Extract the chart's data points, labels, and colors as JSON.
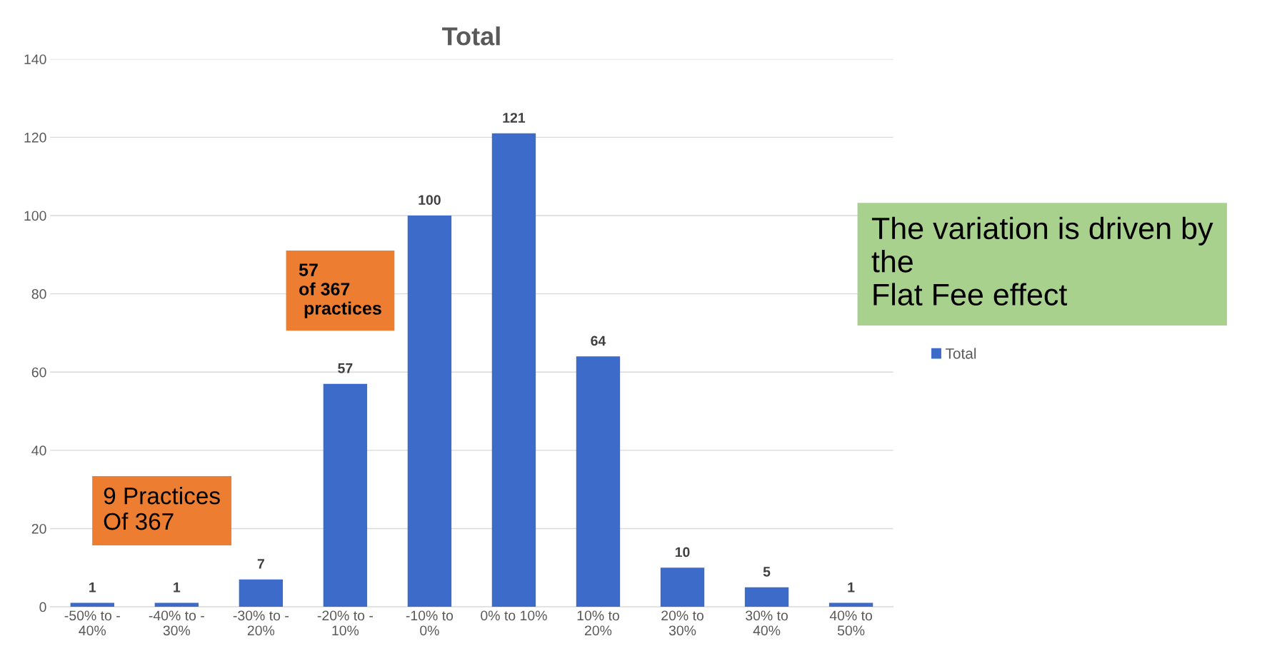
{
  "chart_data": {
    "type": "bar",
    "title": "Total",
    "categories": [
      "-50% to -\n40%",
      "-40% to -\n30%",
      "-30% to -\n20%",
      "-20% to -\n10%",
      "-10% to\n0%",
      "0% to 10%",
      "10% to\n20%",
      "20% to\n30%",
      "30% to\n40%",
      "40% to\n50%"
    ],
    "series": [
      {
        "name": "Total",
        "color": "#3d6bc9",
        "values": [
          1,
          1,
          7,
          57,
          100,
          121,
          64,
          10,
          5,
          1
        ]
      }
    ],
    "ylim": [
      0,
      140
    ],
    "yticks": [
      0,
      20,
      40,
      60,
      80,
      100,
      120,
      140
    ],
    "grid": "y",
    "legend": "right",
    "data_labels": true,
    "annotations": [
      "9 Practices\nOf 367",
      "57\nof 367\n practices",
      "The variation is driven by\nthe\nFlat Fee effect"
    ]
  }
}
